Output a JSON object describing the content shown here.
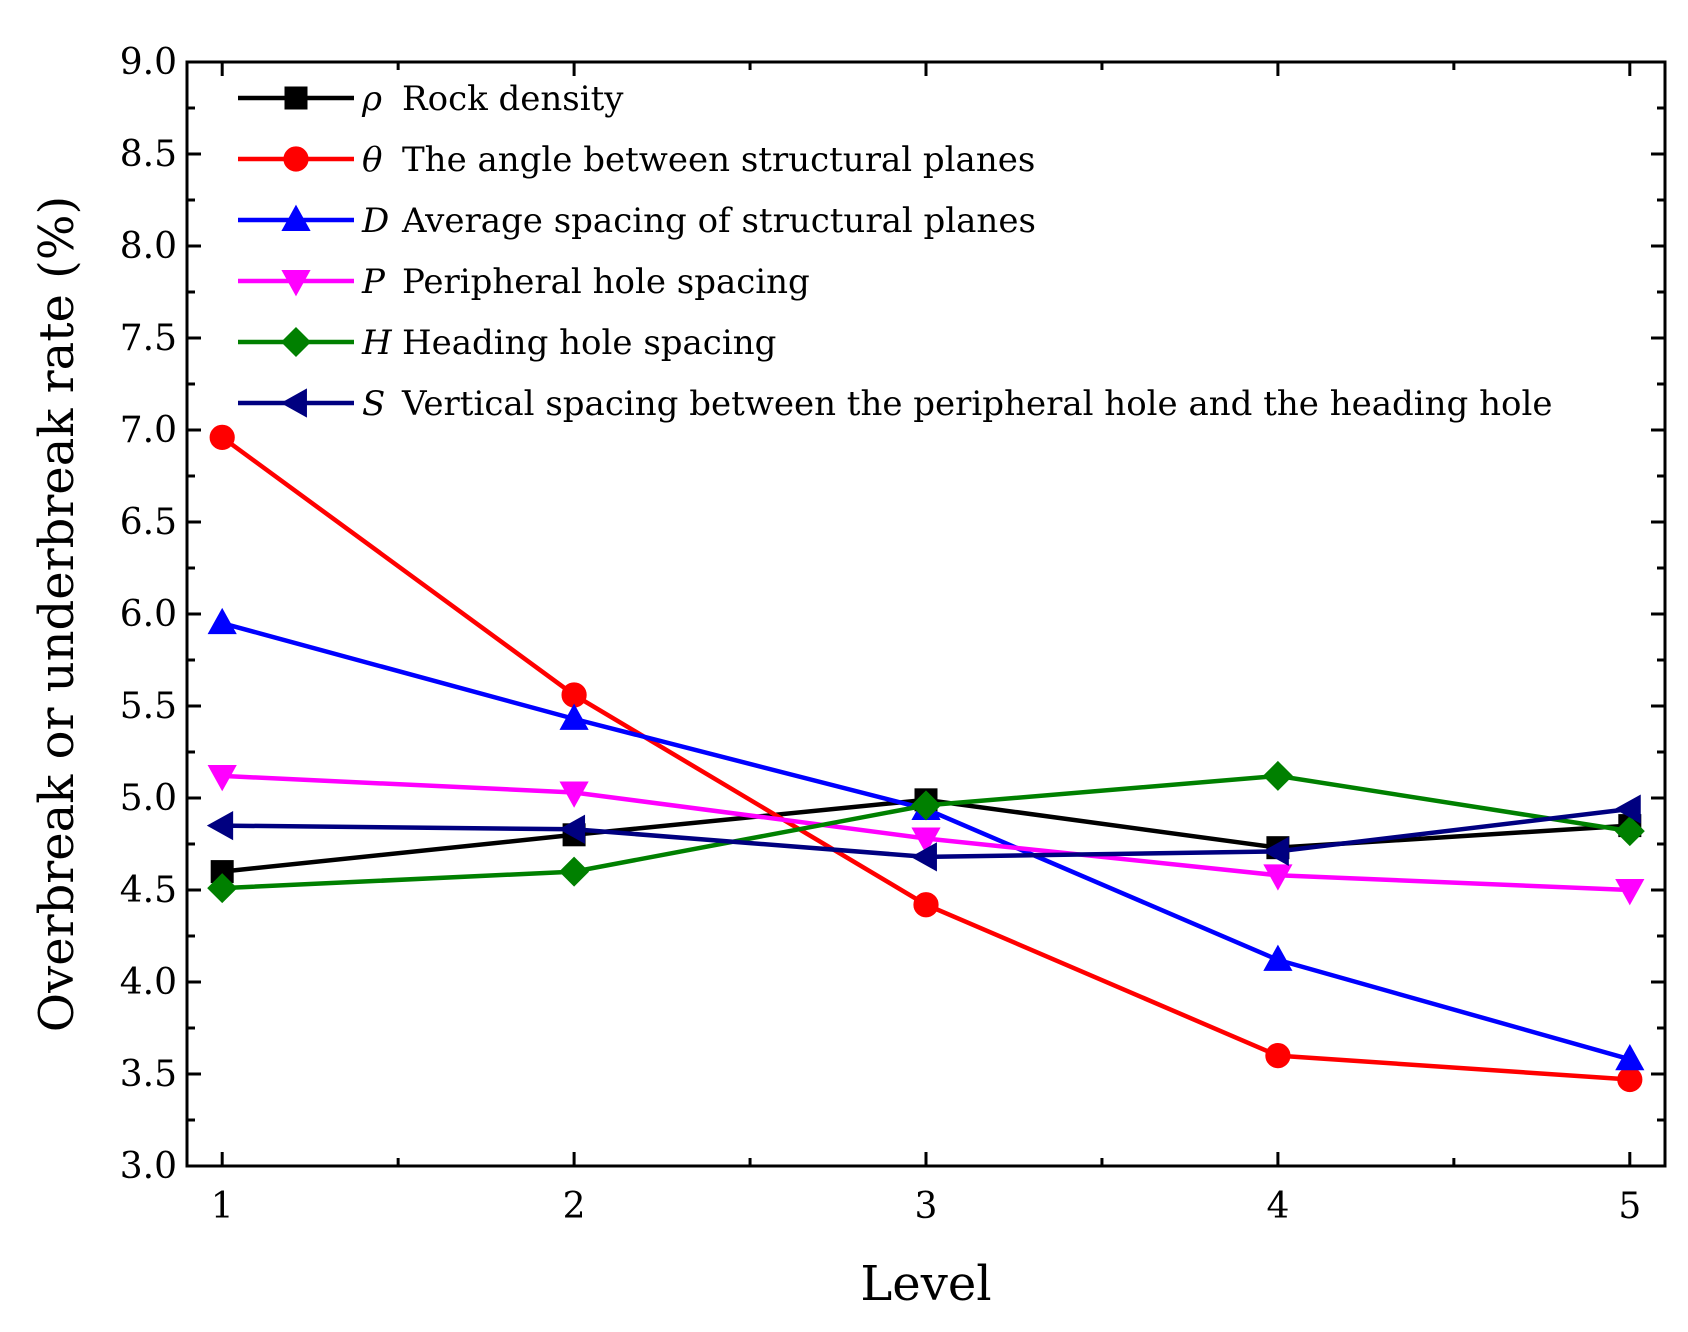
{
  "chart_data": {
    "type": "line",
    "title": "",
    "xlabel": "Level",
    "ylabel": "Overbreak or underbreak rate (%)",
    "x": [
      1,
      2,
      3,
      4,
      5
    ],
    "xlim": [
      0.9,
      5.1
    ],
    "ylim": [
      3.0,
      9.0
    ],
    "x_ticks": [
      "1",
      "2",
      "3",
      "4",
      "5"
    ],
    "y_ticks": [
      "3.0",
      "3.5",
      "4.0",
      "4.5",
      "5.0",
      "5.5",
      "6.0",
      "6.5",
      "7.0",
      "7.5",
      "8.0",
      "8.5",
      "9.0"
    ],
    "grid": false,
    "legend_position": "top-left",
    "series": [
      {
        "symbol": "ρ",
        "name": "Rock density",
        "color": "#000000",
        "marker": "square",
        "values": [
          4.6,
          4.8,
          4.99,
          4.73,
          4.85
        ]
      },
      {
        "symbol": "θ",
        "name": "The angle between structural planes",
        "color": "#ff0000",
        "marker": "circle",
        "values": [
          6.96,
          5.56,
          4.42,
          3.6,
          3.47
        ]
      },
      {
        "symbol": "D",
        "name": "Average spacing of structural planes",
        "color": "#0000ff",
        "marker": "triangle-up",
        "values": [
          5.95,
          5.43,
          4.94,
          4.12,
          3.58
        ]
      },
      {
        "symbol": "P",
        "name": "Peripheral hole spacing",
        "color": "#ff00ff",
        "marker": "triangle-down",
        "values": [
          5.12,
          5.03,
          4.78,
          4.58,
          4.5
        ]
      },
      {
        "symbol": "H",
        "name": "Heading hole spacing",
        "color": "#008000",
        "marker": "diamond",
        "values": [
          4.51,
          4.6,
          4.96,
          5.12,
          4.82
        ]
      },
      {
        "symbol": "S",
        "name": "Vertical spacing between the peripheral hole and the heading hole",
        "color": "#000080",
        "marker": "triangle-left",
        "values": [
          4.85,
          4.83,
          4.68,
          4.71,
          4.94
        ]
      }
    ]
  }
}
